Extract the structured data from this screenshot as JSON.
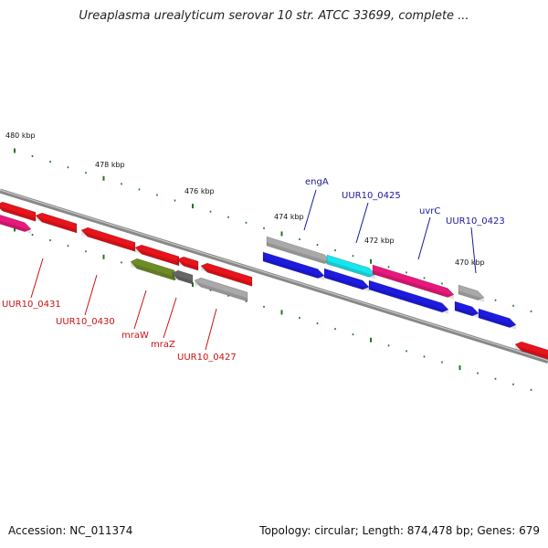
{
  "title": "Ureaplasma urealyticum serovar 10 str. ATCC 33699, complete ...",
  "footer": {
    "accession": "Accession: NC_011374",
    "summary": "Topology: circular; Length: 874,478 bp; Genes: 679"
  },
  "colors": {
    "red": "#e8131b",
    "magenta": "#e8187c",
    "blue": "#1d1be0",
    "gray": "#a9a9a9",
    "cyan": "#18e6ee",
    "olive": "#6e8c25",
    "darkgray": "#666666",
    "tick": "#1f7a1f",
    "backbone": "#888888",
    "label_red": "#cc1111",
    "label_blue": "#1a1a9a"
  },
  "kbp_labels": [
    "480 kbp",
    "478 kbp",
    "476 kbp",
    "474 kbp",
    "472 kbp",
    "470 kbp"
  ],
  "genes": [
    {
      "name": "UUR10_0431",
      "color": "red",
      "strand": "upper"
    },
    {
      "name": "UUR10_0430",
      "color": "red",
      "strand": "upper"
    },
    {
      "name": "mraW",
      "color": "olive",
      "strand": "upper"
    },
    {
      "name": "mraZ",
      "color": "darkgray",
      "strand": "upper"
    },
    {
      "name": "UUR10_0427",
      "color": "gray",
      "strand": "upper"
    },
    {
      "name": "engA",
      "color": "gray",
      "strand": "lower"
    },
    {
      "name": "UUR10_0425",
      "color": "cyan",
      "strand": "lower"
    },
    {
      "name": "uvrC",
      "color": "magenta",
      "strand": "lower"
    },
    {
      "name": "UUR10_0423",
      "color": "gray",
      "strand": "lower"
    }
  ]
}
